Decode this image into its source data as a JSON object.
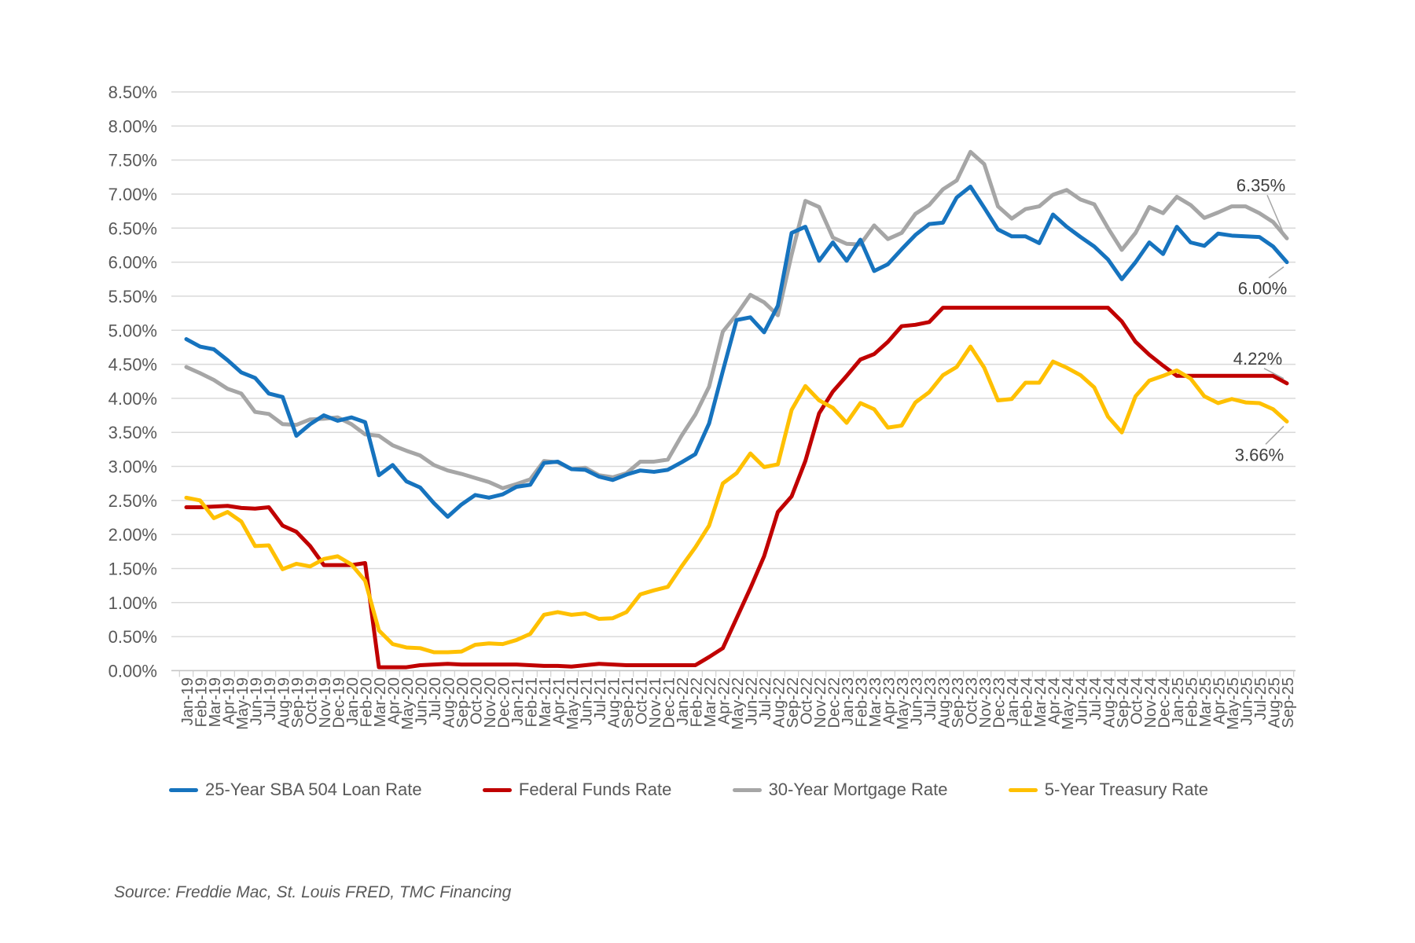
{
  "page": {
    "background": "#FFFFFF"
  },
  "source_note": "Source: Freddie Mac, St. Louis FRED, TMC Financing",
  "chart_data": {
    "type": "line",
    "title": "",
    "grid": true,
    "legend_position": "bottom",
    "x_labels": [
      "Jan-19",
      "Feb-19",
      "Mar-19",
      "Apr-19",
      "May-19",
      "Jun-19",
      "Jul-19",
      "Aug-19",
      "Sep-19",
      "Oct-19",
      "Nov-19",
      "Dec-19",
      "Jan-20",
      "Feb-20",
      "Mar-20",
      "Apr-20",
      "May-20",
      "Jun-20",
      "Jul-20",
      "Aug-20",
      "Sep-20",
      "Oct-20",
      "Nov-20",
      "Dec-20",
      "Jan-21",
      "Feb-21",
      "Mar-21",
      "Apr-21",
      "May-21",
      "Jun-21",
      "Jul-21",
      "Aug-21",
      "Sep-21",
      "Oct-21",
      "Nov-21",
      "Dec-21",
      "Jan-22",
      "Feb-22",
      "Mar-22",
      "Apr-22",
      "May-22",
      "Jun-22",
      "Jul-22",
      "Aug-22",
      "Sep-22",
      "Oct-22",
      "Nov-22",
      "Dec-22",
      "Jan-23",
      "Feb-23",
      "Mar-23",
      "Apr-23",
      "May-23",
      "Jun-23",
      "Jul-23",
      "Aug-23",
      "Sep-23",
      "Oct-23",
      "Nov-23",
      "Dec-23",
      "Jan-24",
      "Feb-24",
      "Mar-24",
      "Apr-24",
      "May-24",
      "Jun-24",
      "Jul-24",
      "Aug-24",
      "Sep-24",
      "Oct-24",
      "Nov-24",
      "Dec-24",
      "Jan-25",
      "Feb-25",
      "Mar-25",
      "Apr-25",
      "May-25",
      "Jun-25",
      "Jul-25",
      "Aug-25",
      "Sep-25"
    ],
    "y_axis": {
      "min": 0,
      "max": 8.5,
      "step": 0.5,
      "format": "percent",
      "tick_labels": [
        "0.00%",
        "0.50%",
        "1.00%",
        "1.50%",
        "2.00%",
        "2.50%",
        "3.00%",
        "3.50%",
        "4.00%",
        "4.50%",
        "5.00%",
        "5.50%",
        "6.00%",
        "6.50%",
        "7.00%",
        "7.50%",
        "8.00%",
        "8.50%"
      ]
    },
    "series": [
      {
        "name": "25-Year SBA 504 Loan Rate",
        "color": "#1673BE",
        "values": [
          4.87,
          4.76,
          4.72,
          4.56,
          4.38,
          4.3,
          4.07,
          4.02,
          3.45,
          3.62,
          3.75,
          3.67,
          3.72,
          3.65,
          2.87,
          3.02,
          2.78,
          2.69,
          2.46,
          2.26,
          2.44,
          2.58,
          2.54,
          2.59,
          2.7,
          2.73,
          3.05,
          3.07,
          2.96,
          2.95,
          2.85,
          2.8,
          2.88,
          2.94,
          2.92,
          2.95,
          3.06,
          3.18,
          3.63,
          4.4,
          5.15,
          5.19,
          4.97,
          5.36,
          6.43,
          6.52,
          6.02,
          6.29,
          6.02,
          6.33,
          5.87,
          5.97,
          6.19,
          6.4,
          6.56,
          6.58,
          6.95,
          7.11,
          6.8,
          6.48,
          6.38,
          6.38,
          6.28,
          6.7,
          6.52,
          6.37,
          6.23,
          6.04,
          5.75,
          6.0,
          6.29,
          6.12,
          6.52,
          6.29,
          6.24,
          6.42,
          6.39,
          6.38,
          6.37,
          6.23,
          6.0
        ]
      },
      {
        "name": "Federal Funds Rate",
        "color": "#C00000",
        "values": [
          2.4,
          2.4,
          2.41,
          2.42,
          2.39,
          2.38,
          2.4,
          2.13,
          2.04,
          1.83,
          1.55,
          1.55,
          1.55,
          1.58,
          0.05,
          0.05,
          0.05,
          0.08,
          0.09,
          0.1,
          0.09,
          0.09,
          0.09,
          0.09,
          0.09,
          0.08,
          0.07,
          0.07,
          0.06,
          0.08,
          0.1,
          0.09,
          0.08,
          0.08,
          0.08,
          0.08,
          0.08,
          0.08,
          0.2,
          0.33,
          0.77,
          1.21,
          1.68,
          2.33,
          2.56,
          3.08,
          3.78,
          4.1,
          4.33,
          4.57,
          4.65,
          4.83,
          5.06,
          5.08,
          5.12,
          5.33,
          5.33,
          5.33,
          5.33,
          5.33,
          5.33,
          5.33,
          5.33,
          5.33,
          5.33,
          5.33,
          5.33,
          5.33,
          5.13,
          4.83,
          4.64,
          4.48,
          4.33,
          4.33,
          4.33,
          4.33,
          4.33,
          4.33,
          4.33,
          4.33,
          4.22
        ]
      },
      {
        "name": "30-Year Mortgage Rate",
        "color": "#A6A6A6",
        "values": [
          4.46,
          4.37,
          4.27,
          4.14,
          4.07,
          3.8,
          3.77,
          3.62,
          3.61,
          3.69,
          3.7,
          3.72,
          3.62,
          3.47,
          3.45,
          3.31,
          3.23,
          3.16,
          3.02,
          2.94,
          2.89,
          2.83,
          2.77,
          2.68,
          2.74,
          2.81,
          3.08,
          3.06,
          2.96,
          2.98,
          2.87,
          2.84,
          2.9,
          3.07,
          3.07,
          3.1,
          3.45,
          3.76,
          4.17,
          4.98,
          5.23,
          5.52,
          5.41,
          5.22,
          6.11,
          6.9,
          6.81,
          6.36,
          6.27,
          6.26,
          6.54,
          6.34,
          6.43,
          6.71,
          6.84,
          7.07,
          7.2,
          7.62,
          7.44,
          6.82,
          6.64,
          6.78,
          6.82,
          6.99,
          7.06,
          6.92,
          6.85,
          6.5,
          6.18,
          6.43,
          6.81,
          6.72,
          6.96,
          6.84,
          6.65,
          6.73,
          6.82,
          6.82,
          6.72,
          6.59,
          6.35
        ]
      },
      {
        "name": "5-Year Treasury Rate",
        "color": "#FFC000",
        "values": [
          2.54,
          2.5,
          2.24,
          2.33,
          2.19,
          1.83,
          1.84,
          1.49,
          1.57,
          1.53,
          1.64,
          1.68,
          1.56,
          1.32,
          0.59,
          0.39,
          0.34,
          0.33,
          0.27,
          0.27,
          0.28,
          0.38,
          0.4,
          0.39,
          0.45,
          0.54,
          0.82,
          0.86,
          0.82,
          0.84,
          0.76,
          0.77,
          0.86,
          1.12,
          1.18,
          1.23,
          1.53,
          1.81,
          2.13,
          2.75,
          2.9,
          3.19,
          2.99,
          3.03,
          3.83,
          4.18,
          3.97,
          3.86,
          3.64,
          3.93,
          3.84,
          3.57,
          3.6,
          3.94,
          4.09,
          4.34,
          4.46,
          4.76,
          4.45,
          3.97,
          3.99,
          4.23,
          4.23,
          4.54,
          4.45,
          4.34,
          4.16,
          3.73,
          3.5,
          4.03,
          4.26,
          4.33,
          4.41,
          4.29,
          4.03,
          3.93,
          3.99,
          3.94,
          3.93,
          3.84,
          3.66
        ]
      }
    ],
    "annotations": [
      {
        "text": "6.35%",
        "series": "30-Year Mortgage Rate",
        "at": "Sep-25",
        "value": 6.35,
        "placement": "above"
      },
      {
        "text": "6.00%",
        "series": "25-Year SBA 504 Loan Rate",
        "at": "Sep-25",
        "value": 6.0,
        "placement": "below"
      },
      {
        "text": "4.22%",
        "series": "Federal Funds Rate",
        "at": "Sep-25",
        "value": 4.22,
        "placement": "above"
      },
      {
        "text": "3.66%",
        "series": "5-Year Treasury Rate",
        "at": "Sep-25",
        "value": 3.66,
        "placement": "below"
      }
    ]
  }
}
